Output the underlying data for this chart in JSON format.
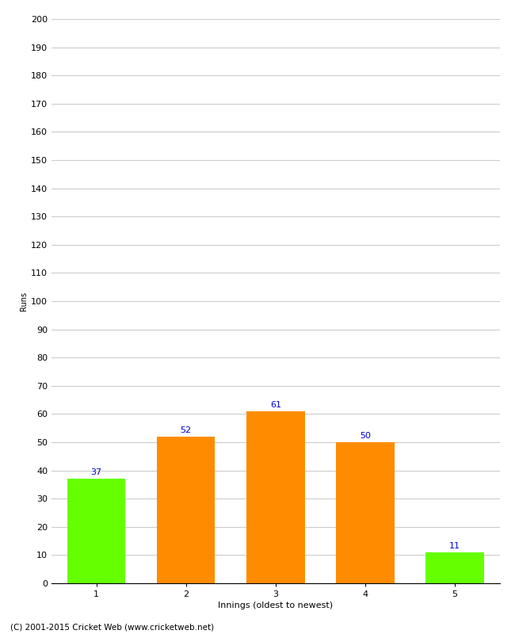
{
  "categories": [
    1,
    2,
    3,
    4,
    5
  ],
  "values": [
    37,
    52,
    61,
    50,
    11
  ],
  "bar_colors": [
    "#66ff00",
    "#ff8c00",
    "#ff8c00",
    "#ff8c00",
    "#66ff00"
  ],
  "ylabel": "Runs",
  "xlabel": "Innings (oldest to newest)",
  "ylim": [
    0,
    200
  ],
  "yticks": [
    0,
    10,
    20,
    30,
    40,
    50,
    60,
    70,
    80,
    90,
    100,
    110,
    120,
    130,
    140,
    150,
    160,
    170,
    180,
    190,
    200
  ],
  "value_label_color": "#0000cc",
  "value_label_fontsize": 8,
  "footer": "(C) 2001-2015 Cricket Web (www.cricketweb.net)",
  "background_color": "#ffffff",
  "grid_color": "#cccccc",
  "bar_width": 0.65,
  "tick_label_fontsize": 8,
  "axis_label_fontsize": 8,
  "ylabel_fontsize": 7
}
